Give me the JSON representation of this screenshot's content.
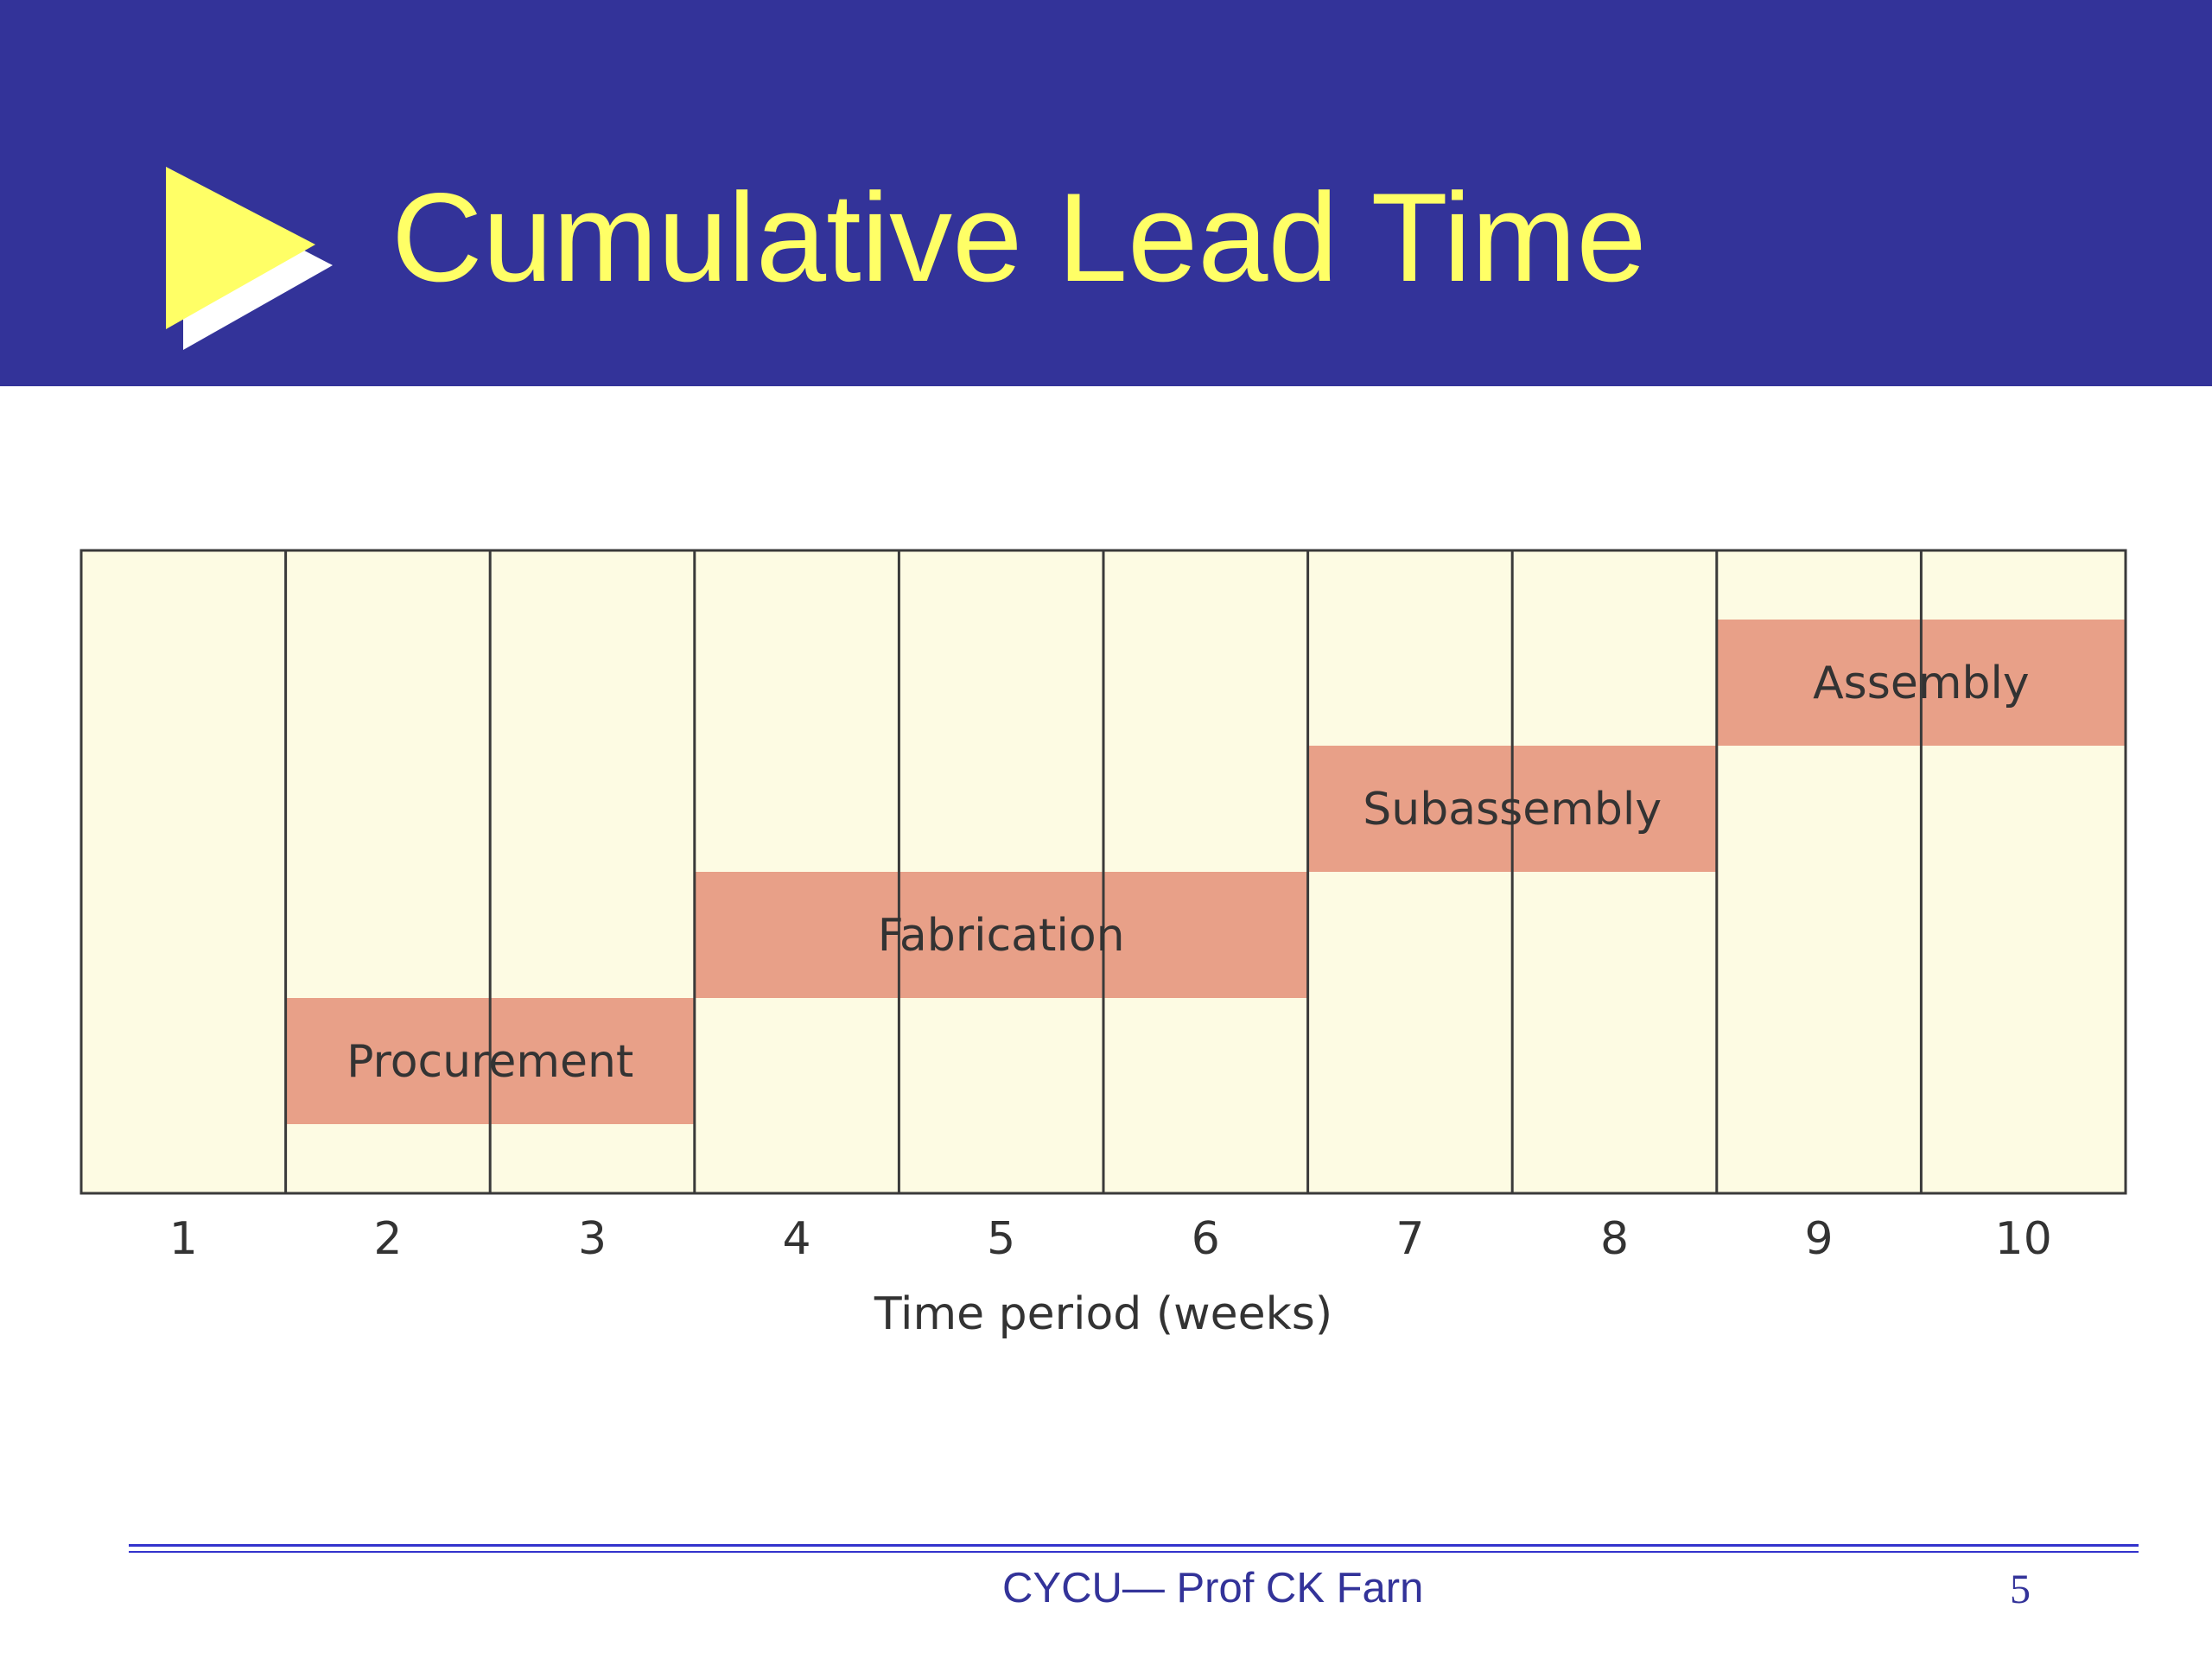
{
  "slide": {
    "title": "Cumulative Lead Time",
    "footer_text": "CYCU— Prof CK Farn",
    "page_number": "5"
  },
  "colors": {
    "header_bg": "#333399",
    "title": "#FFFF66",
    "bullet_triangle": "#FFFF66",
    "bullet_shadow": "#FFFFFF",
    "chart_bg": "#FDFBE3",
    "bar_fill": "#E8A088",
    "grid_line": "#3A3A3A",
    "footer_text": "#333399",
    "footer_line": "#3333CC"
  },
  "icons": {
    "title_bullet": "play-triangle-icon"
  },
  "chart_data": {
    "type": "gantt",
    "title": "",
    "xlabel": "Time period (weeks)",
    "ylabel": "",
    "x_ticks": [
      "1",
      "2",
      "3",
      "4",
      "5",
      "6",
      "7",
      "8",
      "9",
      "10"
    ],
    "xlim": [
      1,
      10
    ],
    "grid": true,
    "tasks": [
      {
        "name": "Procurement",
        "start_week": 2,
        "end_week": 3,
        "level": 1
      },
      {
        "name": "Fabrication",
        "start_week": 4,
        "end_week": 6,
        "level": 2
      },
      {
        "name": "Subassembly",
        "start_week": 7,
        "end_week": 8,
        "level": 3
      },
      {
        "name": "Assembly",
        "start_week": 9,
        "end_week": 10,
        "level": 4
      }
    ]
  }
}
